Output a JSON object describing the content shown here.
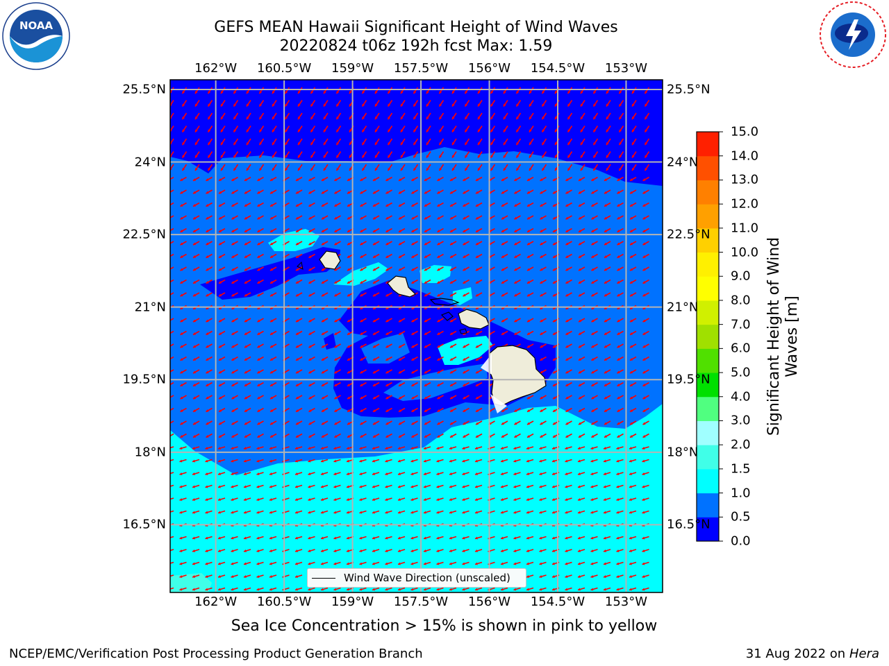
{
  "header": {
    "title_line1": "GEFS MEAN Hawaii Significant Height of Wind Waves",
    "title_line2": "20220824 t06z 192h fcst   Max: 1.59"
  },
  "map": {
    "lon_labels": [
      "162°W",
      "160.5°W",
      "159°W",
      "157.5°W",
      "156°W",
      "154.5°W",
      "153°W"
    ],
    "lat_labels": [
      "25.5°N",
      "24°N",
      "22.5°N",
      "21°N",
      "19.5°N",
      "18°N",
      "16.5°N"
    ],
    "lon_range": [
      -163,
      -152.2
    ],
    "lat_range": [
      15.1,
      25.7
    ],
    "legend_label": "Wind Wave Direction (unscaled)",
    "colors": {
      "level_0_05": "#0000ff",
      "level_05_1": "#0072ff",
      "level_1_15": "#00ffff",
      "level_15_2": "#40ffe8",
      "land": "#efedda",
      "arrow": "#ff0000",
      "grid": "#b4b4b4"
    }
  },
  "colorbar": {
    "label": "Significant Height of Wind Waves [m]",
    "ticks": [
      "0.0",
      "0.5",
      "1.0",
      "1.5",
      "2.0",
      "3.0",
      "4.0",
      "5.0",
      "6.0",
      "7.0",
      "8.0",
      "9.0",
      "10.0",
      "11.0",
      "12.0",
      "13.0",
      "14.0",
      "15.0"
    ],
    "colors": [
      "#0000ff",
      "#0072ff",
      "#00ffff",
      "#40ffe8",
      "#a0ffff",
      "#50ff80",
      "#00e000",
      "#50e000",
      "#a0e000",
      "#d0f000",
      "#ffff00",
      "#fff000",
      "#ffd000",
      "#ffa000",
      "#ff8000",
      "#ff5000",
      "#ff2000"
    ]
  },
  "logos": {
    "left": "noaa-logo",
    "right": "nws-logo"
  },
  "footer": {
    "note": "Sea Ice Concentration > 15% is shown in pink to yellow",
    "credit_left": "NCEP/EMC/Verification Post Processing Product Generation Branch",
    "date": "31 Aug 2022 on",
    "machine": "Hera"
  }
}
